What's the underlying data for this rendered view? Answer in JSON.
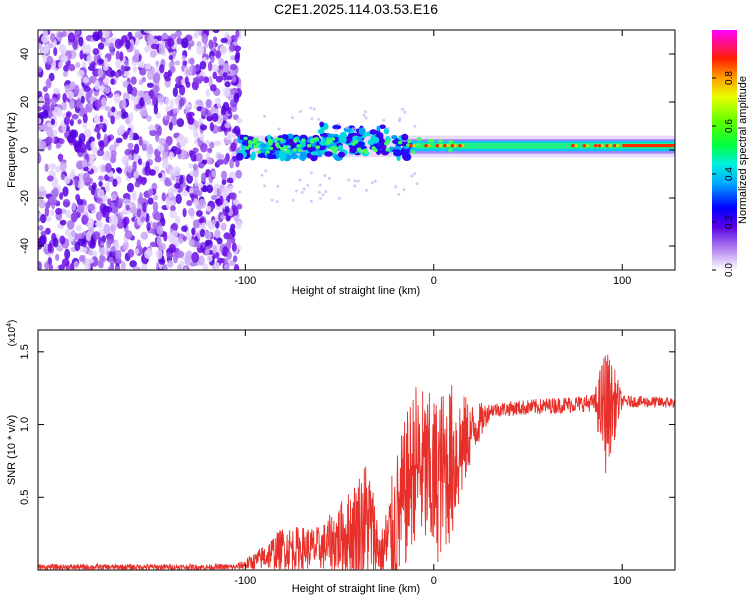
{
  "title": "C2E1.2025.114.03.53.E16",
  "chart_data": [
    {
      "type": "heatmap",
      "xlabel": "Height of straight line (km)",
      "ylabel": "Frequency (Hz)",
      "xlim": [
        -210,
        128
      ],
      "ylim": [
        -50,
        50
      ],
      "xticks": [
        -100,
        0,
        100
      ],
      "yticks": [
        -40,
        -20,
        0,
        20,
        40
      ],
      "colorbar": {
        "label": "Normalized spectral amplitude",
        "range": [
          0,
          1
        ],
        "ticks": [
          0.0,
          0.2,
          0.4,
          0.6,
          0.8
        ],
        "tick_labels": [
          "0.0",
          "0.2",
          "0.4",
          "0.6",
          "0.8"
        ]
      },
      "description_regions": [
        {
          "x_range": [
            -210,
            -103
          ],
          "freq_range": [
            -50,
            50
          ],
          "amplitude": [
            0.05,
            0.25
          ]
        },
        {
          "x_range": [
            -103,
            -15
          ],
          "freq_range": [
            -5,
            8
          ],
          "amplitude": [
            0.2,
            0.5
          ]
        },
        {
          "x_range": [
            -15,
            128
          ],
          "freq_range": [
            -2,
            4
          ],
          "amplitude": [
            0.3,
            1.0
          ],
          "peak_freq": 2
        }
      ]
    },
    {
      "type": "line",
      "xlabel": "Height of straight line (km)",
      "ylabel": "SNR (10 * v/v)",
      "multiplier_label": "(x10",
      "multiplier_exp": "4",
      "xlim": [
        -210,
        128
      ],
      "ylim": [
        0,
        1.65
      ],
      "xticks": [
        -100,
        0,
        100
      ],
      "yticks": [
        0.5,
        1.0,
        1.5
      ],
      "ytick_labels": [
        "0.5",
        "1.0",
        "1.5"
      ],
      "color": "#e8302a",
      "series_envelope": [
        {
          "x": -210,
          "mean": 0.02,
          "spread": 0.02
        },
        {
          "x": -105,
          "mean": 0.02,
          "spread": 0.02
        },
        {
          "x": -95,
          "mean": 0.06,
          "spread": 0.06
        },
        {
          "x": -80,
          "mean": 0.15,
          "spread": 0.15
        },
        {
          "x": -60,
          "mean": 0.15,
          "spread": 0.15
        },
        {
          "x": -45,
          "mean": 0.25,
          "spread": 0.3
        },
        {
          "x": -35,
          "mean": 0.35,
          "spread": 0.45
        },
        {
          "x": -28,
          "mean": 0.1,
          "spread": 0.15
        },
        {
          "x": -20,
          "mean": 0.3,
          "spread": 0.5
        },
        {
          "x": -10,
          "mean": 0.75,
          "spread": 0.55
        },
        {
          "x": 0,
          "mean": 0.6,
          "spread": 0.6
        },
        {
          "x": 10,
          "mean": 0.75,
          "spread": 0.55
        },
        {
          "x": 20,
          "mean": 0.95,
          "spread": 0.2
        },
        {
          "x": 30,
          "mean": 1.1,
          "spread": 0.05
        },
        {
          "x": 85,
          "mean": 1.15,
          "spread": 0.06
        },
        {
          "x": 91,
          "mean": 1.1,
          "spread": 0.45
        },
        {
          "x": 97,
          "mean": 1.15,
          "spread": 0.2
        },
        {
          "x": 100,
          "mean": 1.16,
          "spread": 0.04
        },
        {
          "x": 128,
          "mean": 1.15,
          "spread": 0.04
        }
      ]
    }
  ]
}
